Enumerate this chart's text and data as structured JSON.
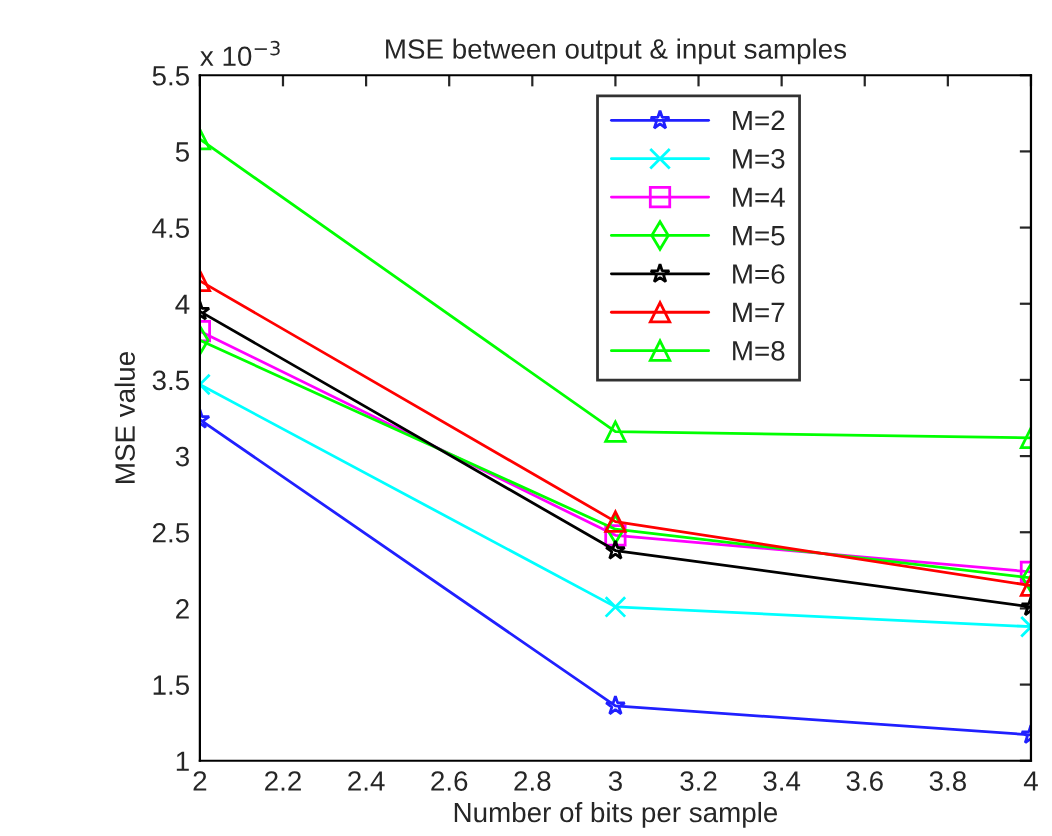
{
  "chart_data": {
    "type": "line",
    "title": "MSE between output & input samples",
    "xlabel": "Number of bits per sample",
    "ylabel": "MSE value",
    "annotations": [
      "x 10$^{−3}$"
    ],
    "x": [
      2,
      3,
      4
    ],
    "series": [
      {
        "name": "M=2",
        "color": "#2020ff",
        "marker": "star",
        "values": [
          3.24,
          1.36,
          1.17
        ]
      },
      {
        "name": "M=3",
        "color": "#00ffff",
        "marker": "cross",
        "values": [
          3.47,
          2.01,
          1.88
        ]
      },
      {
        "name": "M=4",
        "color": "#ff00ff",
        "marker": "square",
        "values": [
          3.82,
          2.48,
          2.24
        ]
      },
      {
        "name": "M=5",
        "color": "#00ff00",
        "marker": "diamond",
        "values": [
          3.76,
          2.52,
          2.2
        ]
      },
      {
        "name": "M=6",
        "color": "#000000",
        "marker": "star",
        "values": [
          3.95,
          2.38,
          2.01
        ]
      },
      {
        "name": "M=7",
        "color": "#ff0000",
        "marker": "triangle",
        "values": [
          4.15,
          2.57,
          2.15
        ]
      },
      {
        "name": "M=8",
        "color": "#00ff00",
        "marker": "triangle",
        "values": [
          5.08,
          3.16,
          3.12
        ]
      }
    ],
    "xlim": [
      2,
      4
    ],
    "xticks": [
      2,
      2.2,
      2.4,
      2.6,
      2.8,
      3,
      3.2,
      3.4,
      3.6,
      3.8,
      4
    ],
    "ylim": [
      1,
      5.5
    ],
    "yticks": [
      1,
      1.5,
      2,
      2.5,
      3,
      3.5,
      4,
      4.5,
      5,
      5.5
    ],
    "legend": "top",
    "grid": false,
    "line_style": "solid"
  }
}
